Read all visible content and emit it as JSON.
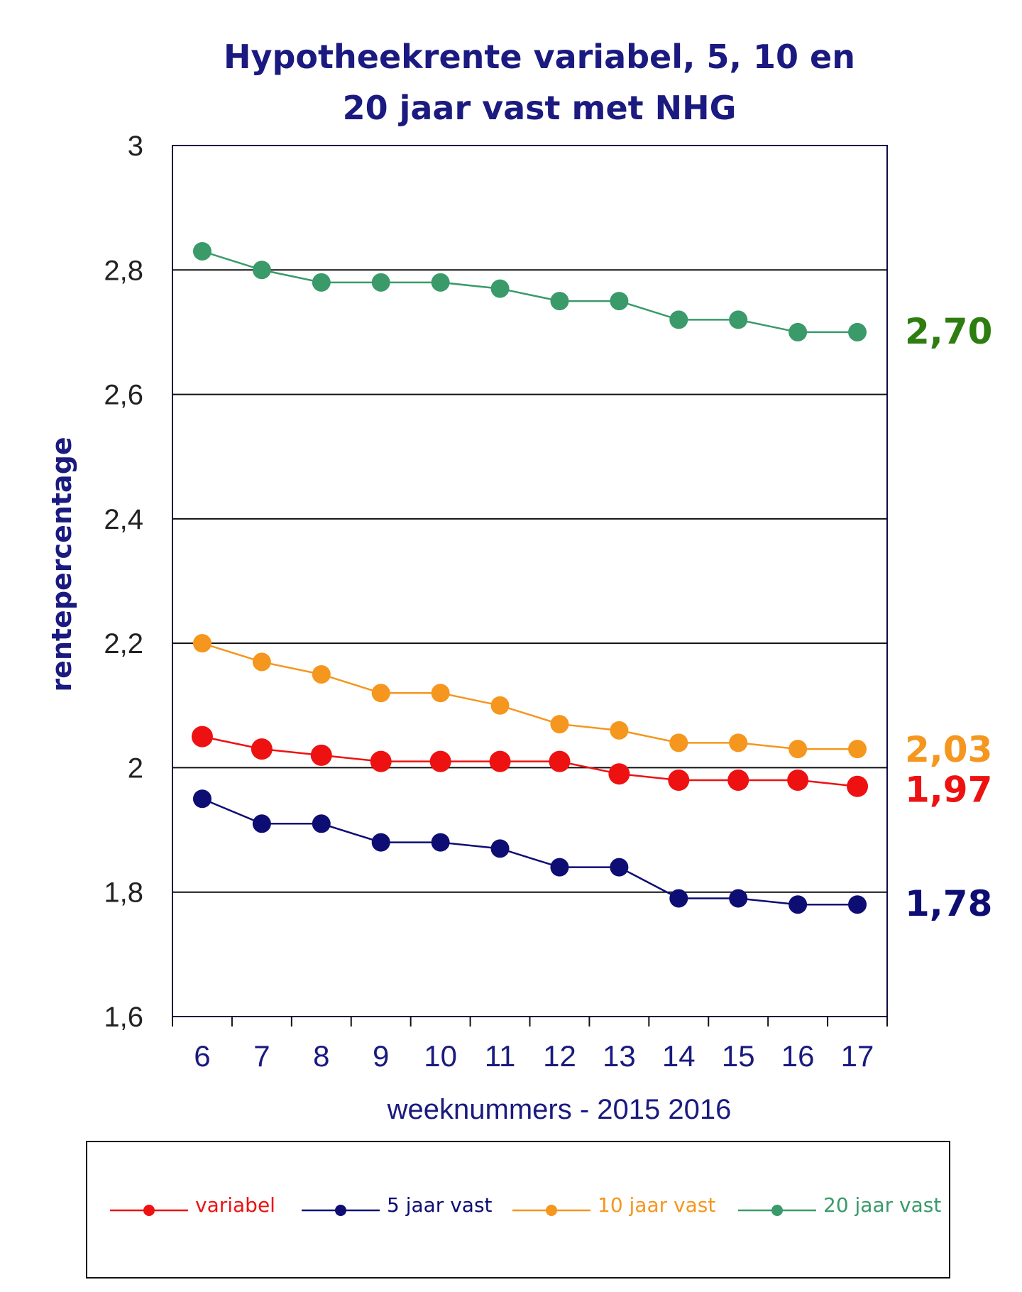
{
  "chart_data": {
    "type": "line",
    "title_lines": [
      "Hypotheekrente variabel, 5, 10 en",
      "20 jaar vast met NHG"
    ],
    "xlabel": "weeknummers  - 2015 2016",
    "ylabel": "rentepercentage",
    "categories": [
      "6",
      "7",
      "8",
      "9",
      "10",
      "11",
      "12",
      "13",
      "14",
      "15",
      "16",
      "17"
    ],
    "y_ticks": [
      "1,6",
      "1,8",
      "2",
      "2,2",
      "2,4",
      "2,6",
      "2,8",
      "3"
    ],
    "y_tick_values": [
      1.6,
      1.8,
      2.0,
      2.2,
      2.4,
      2.6,
      2.8,
      3.0
    ],
    "ylim": [
      1.6,
      3.0
    ],
    "grid": true,
    "legend_position": "bottom",
    "series": [
      {
        "name": "variabel",
        "color": "#ee1111",
        "values": [
          2.05,
          2.03,
          2.02,
          2.01,
          2.01,
          2.01,
          2.01,
          1.99,
          1.98,
          1.98,
          1.98,
          1.97
        ],
        "end_label": "1,97",
        "marker": "large"
      },
      {
        "name": "5 jaar vast",
        "color": "#0d0d73",
        "values": [
          1.95,
          1.91,
          1.91,
          1.88,
          1.88,
          1.87,
          1.84,
          1.84,
          1.79,
          1.79,
          1.78,
          1.78
        ],
        "end_label": "1,78",
        "marker": "medium"
      },
      {
        "name": "10 jaar vast",
        "color": "#f5961e",
        "values": [
          2.2,
          2.17,
          2.15,
          2.12,
          2.12,
          2.1,
          2.07,
          2.06,
          2.04,
          2.04,
          2.03,
          2.03
        ],
        "end_label": "2,03",
        "marker": "medium"
      },
      {
        "name": "20 jaar vast",
        "color": "#3a9a6a",
        "values": [
          2.83,
          2.8,
          2.78,
          2.78,
          2.78,
          2.77,
          2.75,
          2.75,
          2.72,
          2.72,
          2.7,
          2.7
        ],
        "end_label": "2,70",
        "marker": "medium",
        "end_label_color": "#2e7d10"
      }
    ]
  }
}
